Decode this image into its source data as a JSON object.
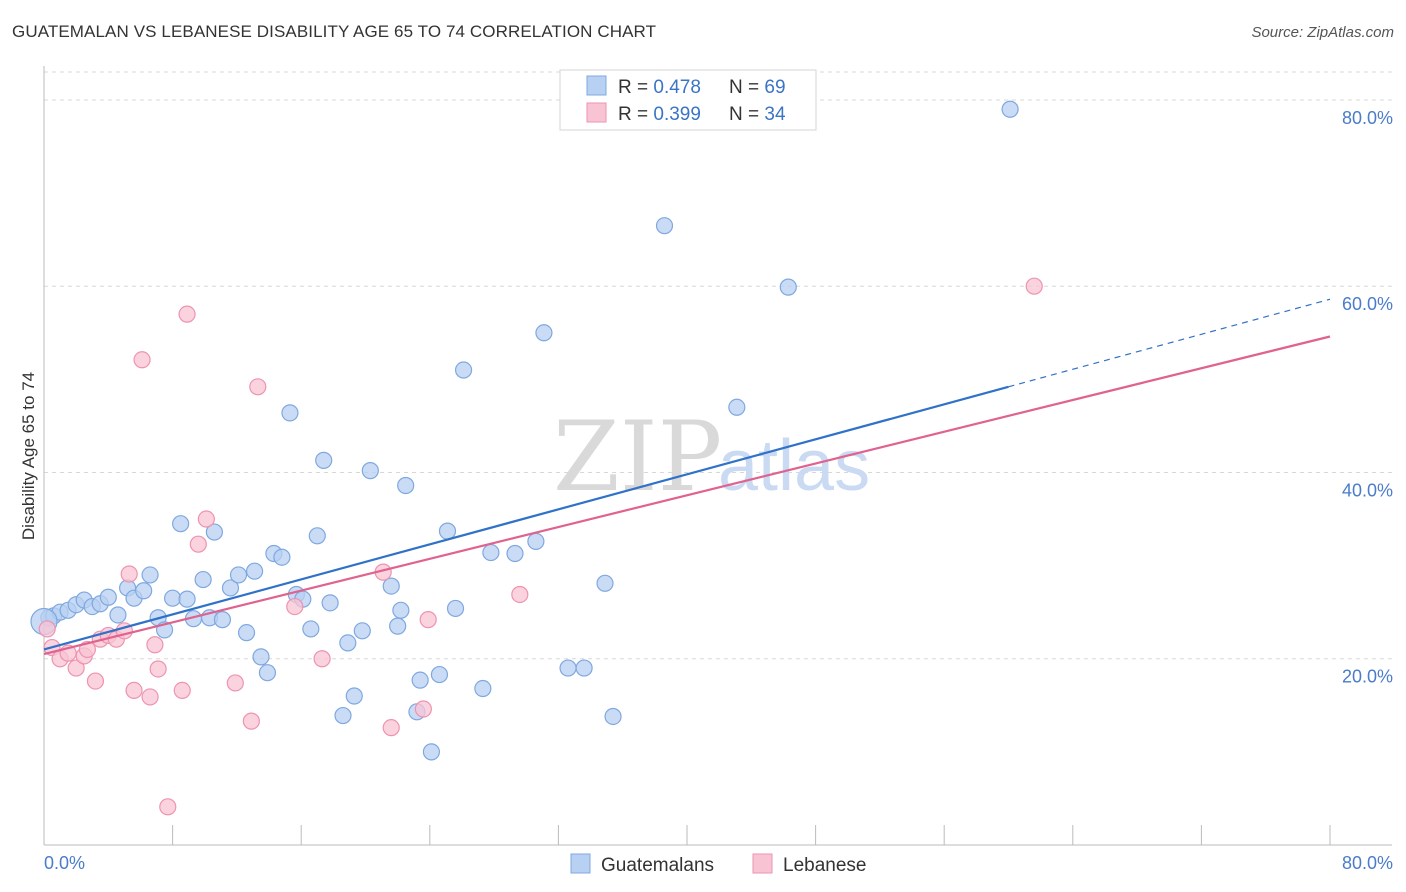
{
  "header": {
    "title": "GUATEMALAN VS LEBANESE DISABILITY AGE 65 TO 74 CORRELATION CHART",
    "source": "Source: ZipAtlas.com"
  },
  "watermark": {
    "zip": "ZIP",
    "atlas": "atlas"
  },
  "colors": {
    "blue_fill": "#b8d0f2",
    "blue_stroke": "#7fa8e0",
    "blue_line": "#2f72c8",
    "pink_fill": "#f8c4d4",
    "pink_stroke": "#ee93b0",
    "pink_line": "#e0628e",
    "axis_text": "#4a7cc9"
  },
  "legend": {
    "rows": [
      {
        "r_label": "R = ",
        "r_value": "0.478",
        "n_label": "N = ",
        "n_value": "69"
      },
      {
        "r_label": "R = ",
        "r_value": "0.399",
        "n_label": "N = ",
        "n_value": "34"
      }
    ]
  },
  "bottom_legend": [
    "Guatemalans",
    "Lebanese"
  ],
  "chart_data": {
    "type": "scatter",
    "title": "GUATEMALAN VS LEBANESE DISABILITY AGE 65 TO 74 CORRELATION CHART",
    "xlabel": "",
    "ylabel": "Disability Age 65 to 74",
    "xlim": [
      0,
      80
    ],
    "ylim": [
      0,
      83
    ],
    "x_tick_labels": [
      "0.0%",
      "80.0%"
    ],
    "y_ticks": [
      20,
      40,
      60,
      80
    ],
    "y_tick_labels": [
      "20.0%",
      "40.0%",
      "60.0%",
      "80.0%"
    ],
    "grid": true,
    "legend_position": "top-center",
    "series": [
      {
        "name": "Guatemalans",
        "r": 0.478,
        "n": 69,
        "trend": {
          "x0": 0,
          "y0": 21.0,
          "x1": 60,
          "y1": 49.2,
          "dash_to_x": 80,
          "dash_to_y": 58.6
        },
        "points": [
          [
            0.3,
            24.4
          ],
          [
            0.6,
            24.6
          ],
          [
            1.0,
            25.0
          ],
          [
            1.5,
            25.2
          ],
          [
            2.0,
            25.8
          ],
          [
            2.5,
            26.3
          ],
          [
            3.0,
            25.6
          ],
          [
            3.5,
            25.9
          ],
          [
            4.0,
            26.6
          ],
          [
            4.6,
            24.7
          ],
          [
            5.2,
            27.6
          ],
          [
            5.6,
            26.5
          ],
          [
            6.2,
            27.3
          ],
          [
            6.6,
            29.0
          ],
          [
            7.1,
            24.4
          ],
          [
            7.5,
            23.1
          ],
          [
            8.0,
            26.5
          ],
          [
            8.5,
            34.5
          ],
          [
            8.9,
            26.4
          ],
          [
            9.3,
            24.3
          ],
          [
            9.9,
            28.5
          ],
          [
            10.3,
            24.4
          ],
          [
            10.6,
            33.6
          ],
          [
            11.1,
            24.2
          ],
          [
            11.6,
            27.6
          ],
          [
            12.1,
            29.0
          ],
          [
            12.6,
            22.8
          ],
          [
            13.1,
            29.4
          ],
          [
            13.5,
            20.2
          ],
          [
            13.9,
            18.5
          ],
          [
            14.3,
            31.3
          ],
          [
            14.8,
            30.9
          ],
          [
            15.3,
            46.4
          ],
          [
            15.7,
            26.9
          ],
          [
            16.1,
            26.4
          ],
          [
            16.6,
            23.2
          ],
          [
            17.0,
            33.2
          ],
          [
            17.4,
            41.3
          ],
          [
            17.8,
            26.0
          ],
          [
            18.6,
            13.9
          ],
          [
            18.9,
            21.7
          ],
          [
            19.3,
            16.0
          ],
          [
            19.8,
            23.0
          ],
          [
            20.3,
            40.2
          ],
          [
            21.6,
            27.8
          ],
          [
            22.0,
            23.5
          ],
          [
            22.2,
            25.2
          ],
          [
            22.5,
            38.6
          ],
          [
            23.2,
            14.3
          ],
          [
            23.4,
            17.7
          ],
          [
            24.1,
            10.0
          ],
          [
            24.6,
            18.3
          ],
          [
            25.1,
            33.7
          ],
          [
            25.6,
            25.4
          ],
          [
            26.1,
            51.0
          ],
          [
            27.3,
            16.8
          ],
          [
            27.8,
            31.4
          ],
          [
            29.3,
            31.3
          ],
          [
            30.6,
            32.6
          ],
          [
            31.1,
            55.0
          ],
          [
            32.6,
            19.0
          ],
          [
            33.6,
            19.0
          ],
          [
            34.9,
            28.1
          ],
          [
            35.4,
            13.8
          ],
          [
            38.6,
            66.5
          ],
          [
            43.1,
            47.0
          ],
          [
            46.3,
            59.9
          ],
          [
            60.1,
            79.0
          ],
          [
            0.0,
            24.0
          ]
        ]
      },
      {
        "name": "Lebanese",
        "r": 0.399,
        "n": 34,
        "trend": {
          "x0": 0,
          "y0": 20.5,
          "x1": 80,
          "y1": 54.6
        },
        "points": [
          [
            0.2,
            23.2
          ],
          [
            0.5,
            21.2
          ],
          [
            1.0,
            20.0
          ],
          [
            1.5,
            20.6
          ],
          [
            2.0,
            19.0
          ],
          [
            2.5,
            20.3
          ],
          [
            2.7,
            21.0
          ],
          [
            3.2,
            17.6
          ],
          [
            3.5,
            22.1
          ],
          [
            4.0,
            22.5
          ],
          [
            4.5,
            22.1
          ],
          [
            5.0,
            23.0
          ],
          [
            5.3,
            29.1
          ],
          [
            5.6,
            16.6
          ],
          [
            6.1,
            52.1
          ],
          [
            6.6,
            15.9
          ],
          [
            6.9,
            21.5
          ],
          [
            7.1,
            18.9
          ],
          [
            7.7,
            4.1
          ],
          [
            8.6,
            16.6
          ],
          [
            8.9,
            57.0
          ],
          [
            9.6,
            32.3
          ],
          [
            10.1,
            35.0
          ],
          [
            11.9,
            17.4
          ],
          [
            12.9,
            13.3
          ],
          [
            13.3,
            49.2
          ],
          [
            15.6,
            25.6
          ],
          [
            17.3,
            20.0
          ],
          [
            21.1,
            29.3
          ],
          [
            21.6,
            12.6
          ],
          [
            23.6,
            14.6
          ],
          [
            23.9,
            24.2
          ],
          [
            29.6,
            26.9
          ],
          [
            61.6,
            60.0
          ]
        ]
      }
    ]
  }
}
